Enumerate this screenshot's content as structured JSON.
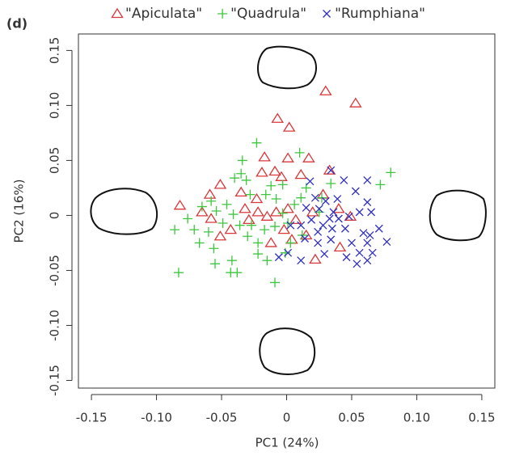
{
  "chart_data": {
    "type": "scatter",
    "title": "(d)",
    "xlabel": "PC1 (24%)",
    "ylabel": "PC2 (16%)",
    "xlim": [
      -0.16,
      0.16
    ],
    "ylim": [
      -0.157,
      0.165
    ],
    "xticks": [
      -0.15,
      {
        "value": -0.1,
        "label": "-0.10"
      },
      -0.05,
      0,
      0.05,
      {
        "value": 0.1,
        "label": "0.10"
      },
      0.15
    ],
    "yticks": [
      -0.15,
      {
        "value": -0.1,
        "label": "-0.10"
      },
      -0.05,
      0,
      0.05,
      {
        "value": 0.1,
        "label": "0.10"
      },
      0.15
    ],
    "series": [
      {
        "name": "\"Apiculata\"",
        "color": "#d8383a",
        "marker": "triangle",
        "x": [
          0.03,
          0.053,
          -0.007,
          0.002,
          -0.082,
          -0.017,
          0.001,
          0.017,
          -0.051,
          -0.059,
          -0.035,
          -0.019,
          -0.009,
          -0.004,
          0.011,
          0.033,
          -0.032,
          -0.022,
          -0.015,
          -0.008,
          0.001,
          0.007,
          -0.065,
          -0.051,
          -0.058,
          -0.043,
          -0.029,
          -0.002,
          0.004,
          0.015,
          0.022,
          0.041,
          0.049,
          0.028,
          0.04,
          0.02,
          -0.012,
          -0.023
        ],
        "values": [
          0.113,
          0.102,
          0.088,
          0.08,
          0.009,
          0.053,
          0.052,
          0.052,
          0.028,
          0.019,
          0.021,
          0.039,
          0.04,
          0.035,
          0.037,
          0.041,
          0.006,
          0.003,
          -0.001,
          0.003,
          0.006,
          -0.004,
          0.003,
          -0.019,
          -0.003,
          -0.013,
          -0.004,
          -0.013,
          -0.022,
          -0.018,
          -0.04,
          -0.029,
          -0.001,
          0.019,
          0.006,
          0.003,
          -0.025,
          0.015
        ]
      },
      {
        "name": "\"Quadrula\"",
        "color": "#3ec63e",
        "marker": "plus",
        "x": [
          -0.023,
          0.01,
          0.08,
          0.072,
          0.034,
          -0.034,
          -0.035,
          -0.04,
          -0.031,
          -0.003,
          -0.016,
          -0.008,
          -0.058,
          -0.065,
          -0.054,
          -0.046,
          -0.041,
          -0.076,
          -0.086,
          -0.071,
          -0.067,
          -0.083,
          -0.056,
          -0.055,
          -0.042,
          -0.043,
          -0.038,
          -0.009,
          -0.022,
          -0.015,
          -0.03,
          -0.027,
          -0.036,
          -0.017,
          -0.009,
          0.001,
          0.011,
          0.015,
          0.027,
          0.003,
          -0.001,
          -0.022,
          -0.003,
          0.006,
          -0.049,
          -0.06,
          -0.012,
          -0.028,
          0.025,
          0.012
        ],
        "values": [
          0.066,
          0.057,
          0.039,
          0.028,
          0.029,
          0.05,
          0.038,
          0.034,
          0.032,
          0.028,
          0.019,
          0.015,
          0.013,
          0.008,
          0.004,
          0.01,
          0.001,
          -0.003,
          -0.013,
          -0.013,
          -0.025,
          -0.052,
          -0.03,
          -0.044,
          -0.041,
          -0.052,
          -0.052,
          -0.061,
          -0.035,
          -0.041,
          -0.019,
          -0.009,
          -0.009,
          -0.013,
          -0.01,
          -0.007,
          0.016,
          0.025,
          0.016,
          -0.025,
          -0.034,
          -0.025,
          0.002,
          0.01,
          -0.007,
          -0.015,
          0.027,
          0.019,
          0.003,
          -0.018
        ]
      },
      {
        "name": "\"Rumphiana\"",
        "color": "#2f2fc0",
        "marker": "x",
        "x": [
          0.034,
          0.044,
          0.062,
          0.053,
          0.018,
          0.022,
          0.03,
          0.039,
          0.062,
          0.015,
          0.025,
          0.036,
          0.048,
          0.056,
          0.065,
          0.019,
          0.028,
          0.035,
          0.045,
          0.059,
          0.064,
          0.071,
          0.077,
          0.011,
          0.014,
          0.024,
          0.034,
          0.05,
          0.056,
          0.066,
          0.062,
          0.054,
          0.046,
          0.029,
          0.011,
          -0.006,
          0.001,
          0.003,
          0.024,
          0.04,
          0.062,
          0.033
        ],
        "values": [
          0.041,
          0.032,
          0.032,
          0.022,
          0.031,
          0.016,
          0.013,
          0.015,
          0.012,
          0.007,
          0.006,
          0.003,
          -0.001,
          0.003,
          0.003,
          -0.004,
          -0.009,
          -0.012,
          -0.012,
          -0.016,
          -0.018,
          -0.012,
          -0.024,
          -0.009,
          -0.021,
          -0.025,
          -0.022,
          -0.025,
          -0.034,
          -0.034,
          -0.041,
          -0.044,
          -0.038,
          -0.035,
          -0.041,
          -0.038,
          -0.034,
          -0.009,
          -0.015,
          -0.003,
          -0.025,
          -0.003
        ]
      }
    ]
  }
}
